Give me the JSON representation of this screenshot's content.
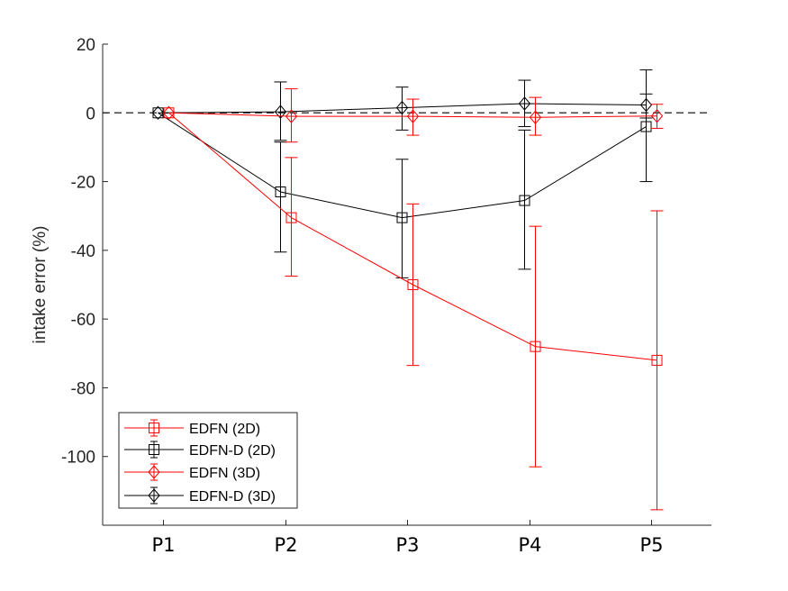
{
  "chart_data": {
    "type": "line",
    "title": "",
    "xlabel": "",
    "ylabel": "intake error (%)",
    "categories": [
      "P1",
      "P2",
      "P3",
      "P4",
      "P5"
    ],
    "ylim": [
      -120,
      20
    ],
    "yticks": [
      20,
      0,
      -20,
      -40,
      -60,
      -80,
      -100
    ],
    "ytick_labels": [
      "20",
      "0",
      "-20",
      "-40",
      "-60",
      "-80",
      "-100"
    ],
    "reference_line": 0,
    "legend_position": "bottom-left",
    "series": [
      {
        "name": "EDFN (2D)",
        "color": "#ff0000",
        "marker": "square",
        "values": [
          0,
          -30.5,
          -50,
          -68,
          -72
        ],
        "err_low": [
          0,
          -47.5,
          -73.5,
          -103,
          -115.5
        ],
        "err_high": [
          0,
          -13,
          -26.5,
          -33,
          -28.5
        ]
      },
      {
        "name": "EDFN-D (2D)",
        "color": "#000000",
        "marker": "square",
        "values": [
          0,
          -23,
          -30.5,
          -25.5,
          -4
        ],
        "err_low": [
          0,
          -40.5,
          -48,
          -45.5,
          -20
        ],
        "err_high": [
          0,
          -8.5,
          -13.5,
          -5,
          5.5
        ]
      },
      {
        "name": "EDFN (3D)",
        "color": "#ff0000",
        "marker": "diamond",
        "values": [
          0,
          -1,
          -1,
          -1.3,
          -0.9
        ],
        "err_low": [
          0,
          -8.5,
          -6.5,
          -6.5,
          -4.5
        ],
        "err_high": [
          0,
          7,
          4,
          4.5,
          2.5
        ]
      },
      {
        "name": "EDFN-D (3D)",
        "color": "#000000",
        "marker": "diamond",
        "values": [
          0,
          0.3,
          1.5,
          2.7,
          2.3
        ],
        "err_low": [
          0,
          -8,
          -5,
          -4,
          -1.5
        ],
        "err_high": [
          0,
          9,
          7.5,
          9.5,
          12.5
        ]
      }
    ]
  }
}
